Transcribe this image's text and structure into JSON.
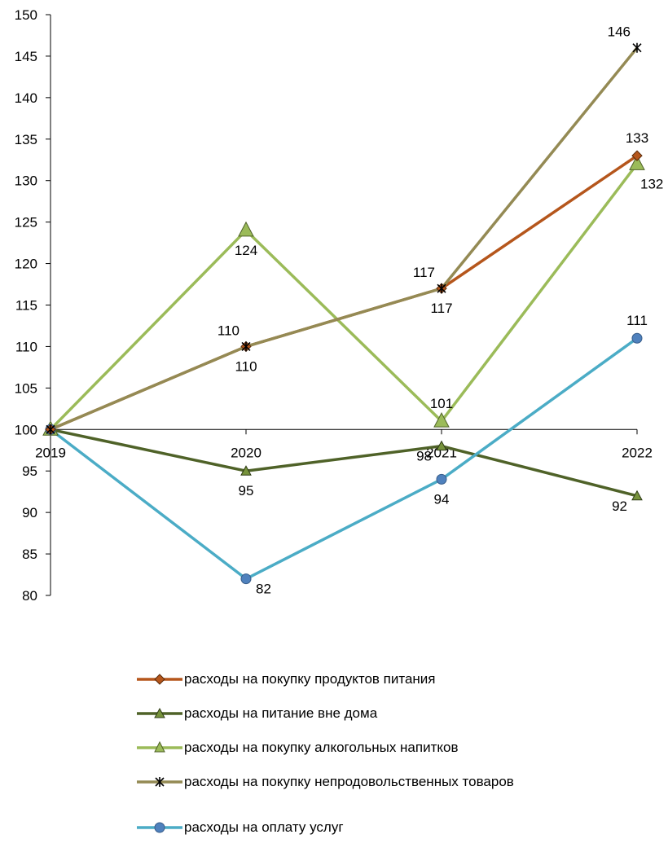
{
  "chart_data": {
    "type": "line",
    "categories": [
      "2019",
      "2020",
      "2021",
      "2022"
    ],
    "ylim": [
      80,
      150
    ],
    "yticks": [
      80,
      85,
      90,
      95,
      100,
      105,
      110,
      115,
      120,
      125,
      130,
      135,
      140,
      145,
      150
    ],
    "x_axis_crosses_at": 100,
    "grid": false,
    "legend_position": "bottom",
    "series": [
      {
        "name": "расходы на покупку продуктов питания",
        "color": "#b5561c",
        "marker": "diamond",
        "values": [
          100,
          110,
          117,
          133
        ]
      },
      {
        "name": "расходы на питание вне дома",
        "color": "#4f6228",
        "marker": "triangle",
        "values": [
          100,
          95,
          98,
          92
        ]
      },
      {
        "name": "расходы на покупку алкогольных напитков",
        "color": "#9bbb59",
        "marker": "triangle-large",
        "values": [
          100,
          124,
          101,
          132
        ]
      },
      {
        "name": "расходы на  покупку непродовольственных товаров",
        "color": "#948a54",
        "marker": "star",
        "values": [
          100,
          110,
          117,
          146
        ]
      },
      {
        "name": "расходы на  оплату услуг",
        "color": "#4bacc6",
        "marker": "circle",
        "values": [
          100,
          82,
          94,
          111
        ]
      }
    ],
    "data_labels": [
      {
        "text": "110",
        "category": "2020",
        "value": 110,
        "pos": "above-left"
      },
      {
        "text": "110",
        "category": "2020",
        "value": 110,
        "pos": "below"
      },
      {
        "text": "124",
        "category": "2020",
        "value": 124,
        "pos": "below"
      },
      {
        "text": "95",
        "category": "2020",
        "value": 95,
        "pos": "below"
      },
      {
        "text": "82",
        "category": "2020",
        "value": 82,
        "pos": "right"
      },
      {
        "text": "117",
        "category": "2021",
        "value": 117,
        "pos": "above-left"
      },
      {
        "text": "117",
        "category": "2021",
        "value": 117,
        "pos": "below"
      },
      {
        "text": "101",
        "category": "2021",
        "value": 101,
        "pos": "above"
      },
      {
        "text": "98",
        "category": "2021",
        "value": 98,
        "pos": "left"
      },
      {
        "text": "94",
        "category": "2021",
        "value": 94,
        "pos": "below"
      },
      {
        "text": "146",
        "category": "2022",
        "value": 146,
        "pos": "above-left"
      },
      {
        "text": "133",
        "category": "2022",
        "value": 133,
        "pos": "above"
      },
      {
        "text": "132",
        "category": "2022",
        "value": 132,
        "pos": "below-right"
      },
      {
        "text": "111",
        "category": "2022",
        "value": 111,
        "pos": "above"
      },
      {
        "text": "92",
        "category": "2022",
        "value": 92,
        "pos": "left"
      }
    ]
  }
}
